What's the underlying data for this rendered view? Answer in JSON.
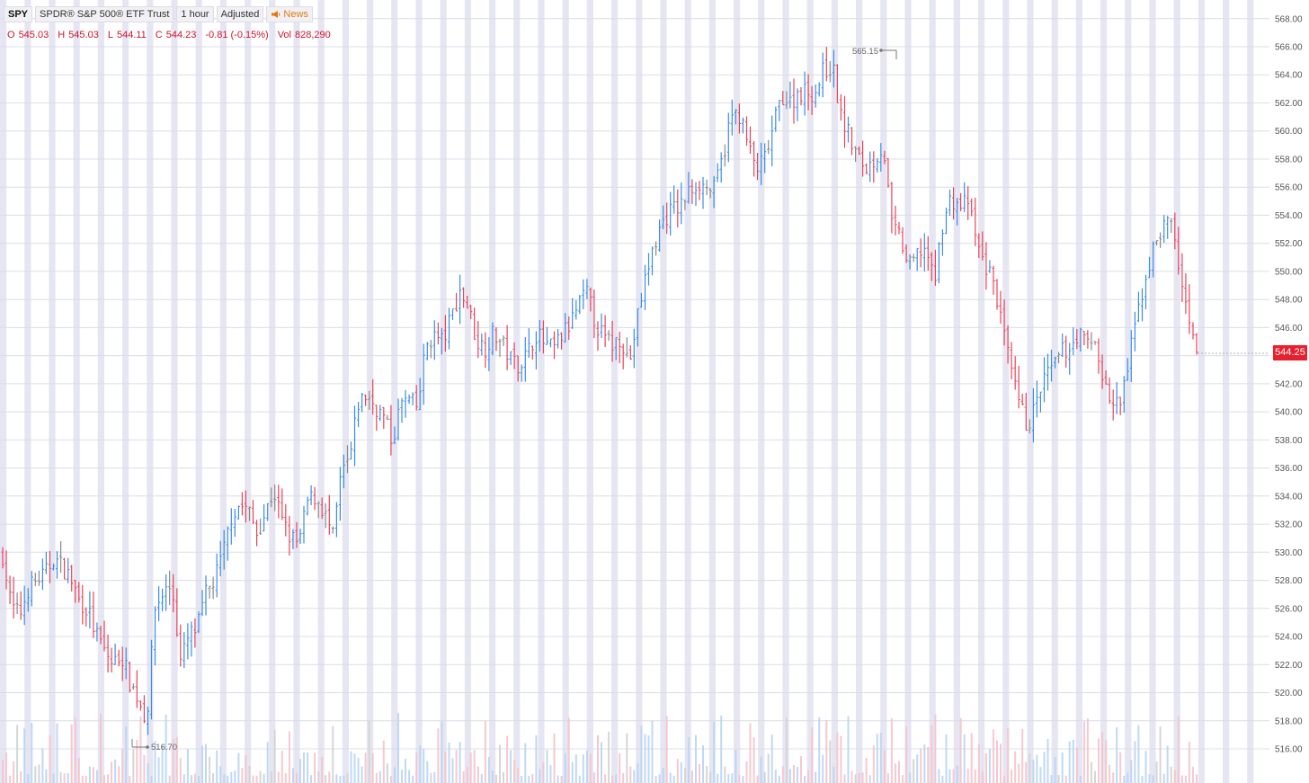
{
  "header": {
    "symbol": "SPY",
    "name": "SPDR® S&P 500® ETF Trust",
    "interval": "1 hour",
    "adjustment": "Adjusted",
    "news_label": "News"
  },
  "ohlc": {
    "o_label": "O",
    "o": "545.03",
    "h_label": "H",
    "h": "545.03",
    "l_label": "L",
    "l": "544.11",
    "c_label": "C",
    "c": "544.23",
    "change": "-0.81 (-0.15%)",
    "vol_label": "Vol",
    "vol": "828,290"
  },
  "colors": {
    "up": "#3c8ce6",
    "down": "#e8445a",
    "neutral": "#8a8a8a",
    "session_band": "#e6e6f3",
    "grid": "#dcdce8",
    "last_price_bg": "#e8202e",
    "news_icon": "#e07a10"
  },
  "annotations": {
    "high_label": "565.15",
    "low_label": "516.70"
  },
  "last_price": "544.25",
  "chart_data": {
    "type": "ohlc",
    "title": "",
    "xlabel": "",
    "ylabel": "",
    "ylim": [
      514.8,
      568.8
    ],
    "y_ticks": [
      "568.00",
      "566.00",
      "564.00",
      "562.00",
      "560.00",
      "558.00",
      "556.00",
      "554.00",
      "552.00",
      "550.00",
      "548.00",
      "546.00",
      "544.00",
      "542.00",
      "540.00",
      "538.00",
      "536.00",
      "534.00",
      "532.00",
      "530.00",
      "528.00",
      "526.00",
      "524.00",
      "522.00",
      "520.00",
      "518.00",
      "516.00"
    ],
    "grid": true,
    "session_shading": true,
    "high_marker": 565.15,
    "low_marker": 516.7,
    "last_price": 544.25,
    "series": [
      {
        "name": "SPY",
        "closes": [
          529.8,
          526.2,
          525.5,
          527.4,
          528.0,
          528.4,
          529.6,
          529.0,
          528.2,
          526.6,
          526.0,
          524.2,
          523.0,
          522.0,
          522.8,
          520.8,
          519.6,
          518.0,
          526.0,
          527.2,
          527.6,
          522.2,
          524.0,
          524.6,
          527.0,
          528.0,
          529.8,
          532.6,
          533.4,
          533.0,
          531.4,
          532.8,
          534.4,
          532.2,
          531.0,
          530.6,
          533.6,
          534.0,
          532.8,
          531.0,
          535.6,
          536.6,
          540.6,
          541.2,
          540.4,
          539.6,
          537.8,
          540.6,
          540.8,
          540.2,
          544.8,
          545.4,
          545.0,
          546.8,
          548.6,
          547.4,
          545.0,
          544.6,
          545.6,
          544.8,
          543.8,
          543.4,
          544.2,
          545.6,
          544.8,
          544.4,
          545.4,
          546.2,
          547.6,
          548.4,
          546.4,
          545.2,
          544.8,
          545.4,
          543.4,
          546.8,
          549.8,
          552.0,
          553.6,
          554.4,
          554.6,
          555.6,
          556.4,
          556.0,
          555.8,
          558.0,
          561.0,
          561.2,
          559.0,
          557.2,
          558.0,
          560.2,
          562.6,
          562.0,
          562.8,
          562.8,
          562.8,
          564.4,
          564.6,
          561.0,
          559.6,
          558.0,
          557.4,
          558.0,
          559.0,
          553.2,
          552.4,
          550.2,
          551.2,
          551.8,
          549.0,
          553.4,
          555.2,
          554.6,
          555.0,
          552.0,
          550.4,
          549.4,
          546.2,
          543.0,
          540.6,
          539.0,
          540.4,
          542.4,
          543.0,
          544.2,
          544.6,
          545.6,
          544.8,
          545.0,
          542.2,
          540.4,
          540.6,
          543.6,
          547.0,
          549.6,
          551.8,
          553.2,
          553.6,
          550.0,
          546.2,
          544.2
        ]
      }
    ],
    "volume": "relative bars along bottom (no scale shown)"
  }
}
